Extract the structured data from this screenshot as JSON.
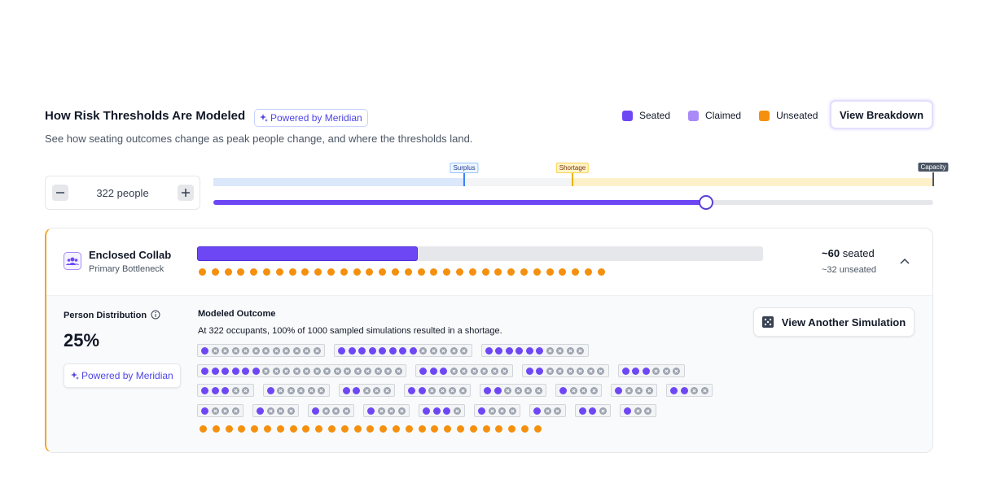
{
  "header": {
    "title": "How Risk Thresholds Are Modeled",
    "badge": "Powered by Meridian",
    "subtitle": "See how seating outcomes change as peak people change, and where the thresholds land."
  },
  "legend": [
    {
      "name": "Seated",
      "color": "#6e47f5"
    },
    {
      "name": "Claimed",
      "color": "#a98af7"
    },
    {
      "name": "Unseated",
      "color": "#f5900f"
    }
  ],
  "breakdown_button": "View Breakdown",
  "stepper": {
    "label": "322 people"
  },
  "thresholds": [
    "Surplus",
    "Shortage",
    "Capacity"
  ],
  "card": {
    "title": "Enclosed Collab",
    "subtitle": "Primary Bottleneck",
    "seated": "~60",
    "seated_label": "seated",
    "unseated": "~32 unseated",
    "unseated_dots": 32
  },
  "details": {
    "heading": "Person Distribution",
    "percent": "25%",
    "badge": "Powered by Meridian"
  },
  "simulation": {
    "heading": "Modeled Outcome",
    "summary": "At 322 occupants, 100% of 1000 sampled simulations resulted in a shortage.",
    "button": "View Another Simulation",
    "groups": [
      [
        {
          "seated": 1,
          "empty": 11
        },
        {
          "seated": 8,
          "empty": 5
        },
        {
          "seated": 6,
          "empty": 4
        }
      ],
      [
        {
          "seated": 6,
          "empty": 14
        },
        {
          "seated": 3,
          "empty": 6
        },
        {
          "seated": 2,
          "empty": 6
        },
        {
          "seated": 3,
          "empty": 3
        }
      ],
      [
        {
          "seated": 3,
          "empty": 2
        },
        {
          "seated": 1,
          "empty": 5
        },
        {
          "seated": 2,
          "empty": 3
        },
        {
          "seated": 2,
          "empty": 4
        },
        {
          "seated": 2,
          "empty": 4
        },
        {
          "seated": 1,
          "empty": 3
        },
        {
          "seated": 1,
          "empty": 3
        },
        {
          "seated": 2,
          "empty": 2
        }
      ],
      [
        {
          "seated": 1,
          "empty": 3
        },
        {
          "seated": 1,
          "empty": 3
        },
        {
          "seated": 1,
          "empty": 3
        },
        {
          "seated": 1,
          "empty": 3
        },
        {
          "seated": 3,
          "empty": 1
        },
        {
          "seated": 1,
          "empty": 3
        },
        {
          "seated": 1,
          "empty": 2
        },
        {
          "seated": 2,
          "empty": 1
        },
        {
          "seated": 1,
          "empty": 2
        }
      ]
    ],
    "unseated_dots": 27
  }
}
